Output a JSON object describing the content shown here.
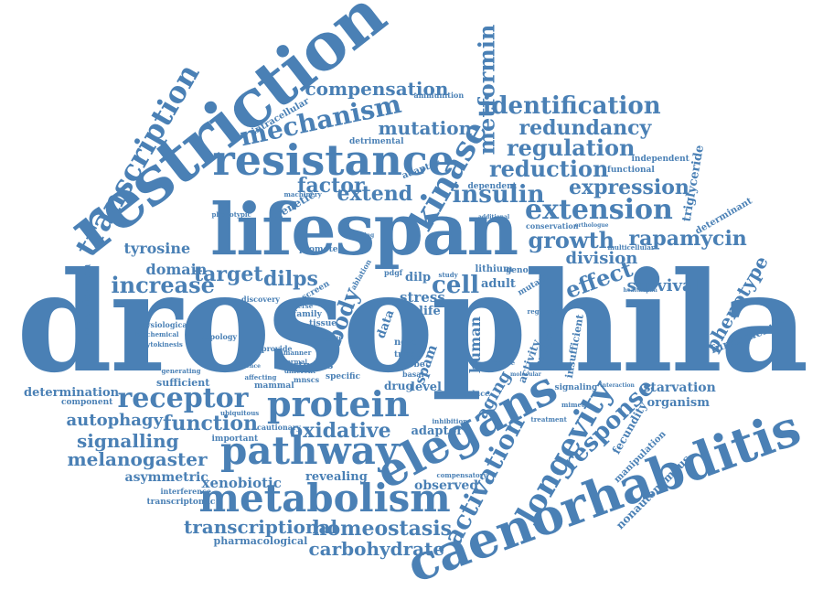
{
  "colors": {
    "word": "#4a80b5",
    "background": "#ffffff"
  },
  "words": [
    {
      "text": "drosophila",
      "rot": 0
    },
    {
      "text": "lifespan",
      "rot": 0
    },
    {
      "text": "restriction",
      "rot": -38
    },
    {
      "text": "caenorhabditis",
      "rot": -20
    },
    {
      "text": "resistance",
      "rot": 0
    },
    {
      "text": "elegans",
      "rot": -28
    },
    {
      "text": "pathway",
      "rot": 0
    },
    {
      "text": "metabolism",
      "rot": 0
    },
    {
      "text": "protein",
      "rot": 0
    },
    {
      "text": "longevity",
      "rot": -60
    },
    {
      "text": "kinase",
      "rot": -60
    },
    {
      "text": "transcription",
      "rot": -60
    },
    {
      "text": "receptor",
      "rot": 0
    },
    {
      "text": "mechanism",
      "rot": -12
    },
    {
      "text": "extension",
      "rot": 0
    },
    {
      "text": "insulin",
      "rot": 0
    },
    {
      "text": "identification",
      "rot": 0
    },
    {
      "text": "redundancy",
      "rot": 0
    },
    {
      "text": "regulation",
      "rot": 0
    },
    {
      "text": "reduction",
      "rot": 0
    },
    {
      "text": "expression",
      "rot": 0
    },
    {
      "text": "growth",
      "rot": 0
    },
    {
      "text": "rapamycin",
      "rot": 0
    },
    {
      "text": "compensation",
      "rot": 0
    },
    {
      "text": "metformin",
      "rot": -90
    },
    {
      "text": "mutation",
      "rot": 0
    },
    {
      "text": "factor",
      "rot": 0
    },
    {
      "text": "extend",
      "rot": 0
    },
    {
      "text": "homeostasis",
      "rot": 0
    },
    {
      "text": "transcriptional",
      "rot": 0
    },
    {
      "text": "carbohydrate",
      "rot": 0
    },
    {
      "text": "activation",
      "rot": -62
    },
    {
      "text": "response",
      "rot": -45
    },
    {
      "text": "function",
      "rot": 0
    },
    {
      "text": "oxidative",
      "rot": 0
    },
    {
      "text": "signalling",
      "rot": 0
    },
    {
      "text": "melanogaster",
      "rot": 0
    },
    {
      "text": "autophagy",
      "rot": 0
    },
    {
      "text": "increase",
      "rot": 0
    },
    {
      "text": "target",
      "rot": 0
    },
    {
      "text": "dilps",
      "rot": 0
    },
    {
      "text": "cell",
      "rot": 0
    },
    {
      "text": "effect",
      "rot": -20
    },
    {
      "text": "division",
      "rot": 0
    },
    {
      "text": "survival",
      "rot": 0
    },
    {
      "text": "phenotype",
      "rot": -60
    },
    {
      "text": "domain",
      "rot": 0
    },
    {
      "text": "tyrosine",
      "rot": 0
    },
    {
      "text": "determination",
      "rot": 0
    },
    {
      "text": "xenobiotic",
      "rot": 0
    },
    {
      "text": "asymmetric",
      "rot": 0
    },
    {
      "text": "revealing",
      "rot": 0
    },
    {
      "text": "observed",
      "rot": 0
    },
    {
      "text": "adaptor",
      "rot": 0
    },
    {
      "text": "starvation",
      "rot": 0
    },
    {
      "text": "organism",
      "rot": 0
    },
    {
      "text": "fecundity",
      "rot": -60
    },
    {
      "text": "nonautonomous",
      "rot": -45
    },
    {
      "text": "manipulation",
      "rot": -45
    },
    {
      "text": "triglyceride",
      "rot": -80
    },
    {
      "text": "determinant",
      "rot": -30
    },
    {
      "text": "fundamental",
      "rot": -20
    },
    {
      "text": "body",
      "rot": -70
    },
    {
      "text": "aging",
      "rot": -60
    },
    {
      "text": "genetic",
      "rot": -30
    },
    {
      "text": "spam",
      "rot": -70
    },
    {
      "text": "human",
      "rot": -90
    },
    {
      "text": "diversification",
      "rot": -90
    },
    {
      "text": "intracellular",
      "rot": -30
    },
    {
      "text": "adapter",
      "rot": -20
    },
    {
      "text": "detrimental",
      "rot": 0
    },
    {
      "text": "ammunition",
      "rot": 0
    },
    {
      "text": "machinery",
      "rot": 0
    },
    {
      "text": "phenotypic",
      "rot": 0
    },
    {
      "text": "promote",
      "rot": 0
    },
    {
      "text": "screen",
      "rot": -30
    },
    {
      "text": "ablation",
      "rot": -60
    },
    {
      "text": "physiological",
      "rot": 0
    },
    {
      "text": "biochemical",
      "rot": 0
    },
    {
      "text": "cytokinesis",
      "rot": 0
    },
    {
      "text": "topology",
      "rot": 0
    },
    {
      "text": "family",
      "rot": 0
    },
    {
      "text": "diverse",
      "rot": 0
    },
    {
      "text": "tissue",
      "rot": 0
    },
    {
      "text": "provide",
      "rot": 0
    },
    {
      "text": "manner",
      "rot": 0
    },
    {
      "text": "normal",
      "rot": 0
    },
    {
      "text": "different",
      "rot": 0
    },
    {
      "text": "affecting",
      "rot": 0
    },
    {
      "text": "mammal",
      "rot": 0
    },
    {
      "text": "studies",
      "rot": 0
    },
    {
      "text": "mnscs",
      "rot": 0
    },
    {
      "text": "specific",
      "rot": 0
    },
    {
      "text": "drug",
      "rot": 0
    },
    {
      "text": "level",
      "rot": 0
    },
    {
      "text": "generating",
      "rot": 0
    },
    {
      "text": "sufficient",
      "rot": 0
    },
    {
      "text": "component",
      "rot": 0
    },
    {
      "text": "important",
      "rot": 0
    },
    {
      "text": "cautionary",
      "rot": 0
    },
    {
      "text": "interference",
      "rot": 0
    },
    {
      "text": "transcriptomic",
      "rot": 0
    },
    {
      "text": "pharmacological",
      "rot": 0
    },
    {
      "text": "compensatory",
      "rot": 0
    },
    {
      "text": "inhibition",
      "rot": 0
    },
    {
      "text": "reduce",
      "rot": 0
    },
    {
      "text": "signaling",
      "rot": 0
    },
    {
      "text": "mimetic",
      "rot": 0
    },
    {
      "text": "treatment",
      "rot": 0
    },
    {
      "text": "interaction",
      "rot": 0
    },
    {
      "text": "functional",
      "rot": 0
    },
    {
      "text": "independent",
      "rot": 0
    },
    {
      "text": "dependent",
      "rot": 0
    },
    {
      "text": "conservation",
      "rot": 0
    },
    {
      "text": "orthologue",
      "rot": 0
    },
    {
      "text": "multicellular",
      "rot": 0
    },
    {
      "text": "healthspan",
      "rot": 0
    },
    {
      "text": "insufficient",
      "rot": -80
    },
    {
      "text": "lithium",
      "rot": 0
    },
    {
      "text": "genome",
      "rot": 0
    },
    {
      "text": "adult",
      "rot": 0
    },
    {
      "text": "activity",
      "rot": -70
    },
    {
      "text": "analysis",
      "rot": -70
    },
    {
      "text": "mutant",
      "rot": -30
    },
    {
      "text": "female",
      "rot": 0
    },
    {
      "text": "molecular",
      "rot": 0
    },
    {
      "text": "novel",
      "rot": 0
    },
    {
      "text": "triage",
      "rot": 0
    },
    {
      "text": "probe",
      "rot": 0
    },
    {
      "text": "basal",
      "rot": 0
    },
    {
      "text": "data",
      "rot": -70
    },
    {
      "text": "life",
      "rot": 0
    },
    {
      "text": "dilp",
      "rot": 0
    },
    {
      "text": "study",
      "rot": 0
    },
    {
      "text": "pdgf",
      "rot": 0
    },
    {
      "text": "ageing",
      "rot": 0
    },
    {
      "text": "additional",
      "rot": 0
    },
    {
      "text": "regulator",
      "rot": 0
    },
    {
      "text": "discovery",
      "rot": 0
    },
    {
      "text": "ubiquitous",
      "rot": 0
    },
    {
      "text": "evidence",
      "rot": 0
    },
    {
      "text": "result",
      "rot": 0
    },
    {
      "text": "stress",
      "rot": 0
    }
  ]
}
